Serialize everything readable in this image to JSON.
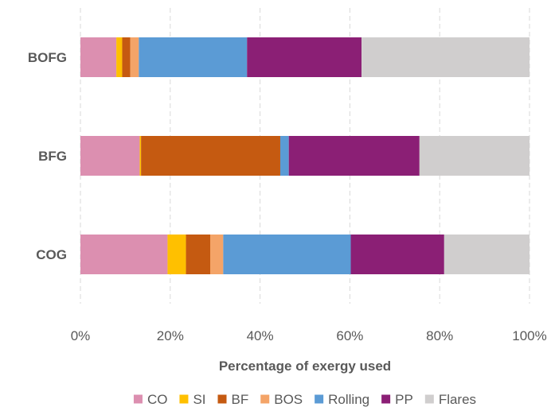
{
  "chart_data": {
    "type": "bar",
    "orientation": "horizontal",
    "stacked": "percent",
    "categories": [
      "BOFG",
      "BFG",
      "COG"
    ],
    "series": [
      {
        "name": "CO",
        "color": "#dc8fb0",
        "values": [
          8.0,
          13.2,
          19.4
        ]
      },
      {
        "name": "SI",
        "color": "#ffc000",
        "values": [
          1.3,
          0.3,
          4.1
        ]
      },
      {
        "name": "BF",
        "color": "#c55a11",
        "values": [
          1.8,
          31.0,
          5.4
        ]
      },
      {
        "name": "BOS",
        "color": "#f4a468",
        "values": [
          1.9,
          0.0,
          2.9
        ]
      },
      {
        "name": "Rolling",
        "color": "#5b9bd5",
        "values": [
          24.1,
          1.9,
          28.4
        ]
      },
      {
        "name": "PP",
        "color": "#8b1f75",
        "values": [
          25.5,
          29.1,
          20.8
        ]
      },
      {
        "name": "Flares",
        "color": "#d0cece",
        "values": [
          37.4,
          24.5,
          19.0
        ]
      }
    ],
    "xlabel": "Percentage of exergy used",
    "ylabel": "",
    "xlim": [
      0,
      100
    ],
    "xticks": [
      "0%",
      "20%",
      "40%",
      "60%",
      "80%",
      "100%"
    ],
    "grid": "vertical dashed",
    "legend": "bottom"
  }
}
